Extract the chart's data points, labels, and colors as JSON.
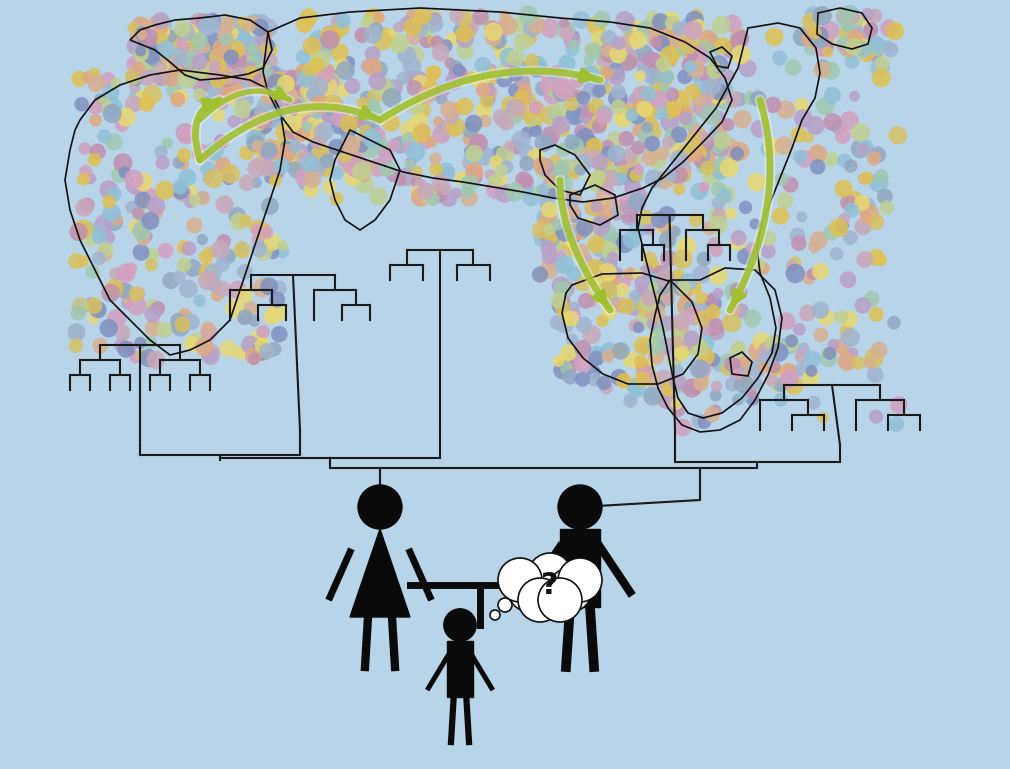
{
  "background_color": "#b8d4e8",
  "figure_width": 10.1,
  "figure_height": 7.69,
  "dpi": 100,
  "map_colors": [
    "#d4a0c0",
    "#a0b4d0",
    "#e8d870",
    "#c090b0",
    "#8090c0",
    "#e0c050",
    "#b8a0c8",
    "#90a8c0",
    "#d8c060",
    "#c8a8b8"
  ],
  "arrow_color": "#a0c030",
  "tree_color": "#1a1a1a",
  "figure_color": "#0a0a0a"
}
